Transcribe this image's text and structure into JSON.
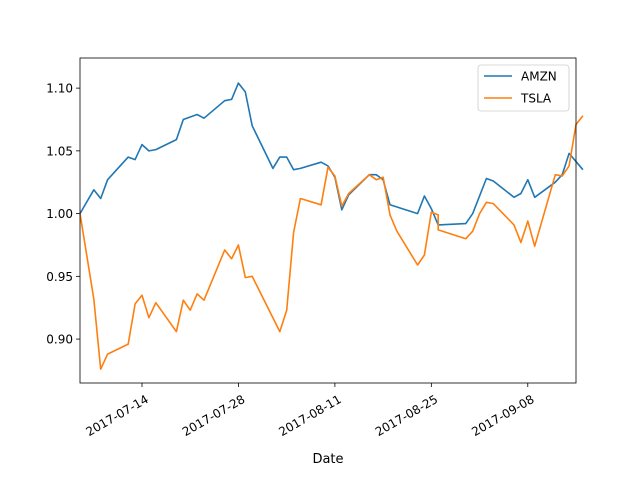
{
  "chart_data": {
    "type": "line",
    "title": "",
    "xlabel": "Date",
    "ylabel": "",
    "grid": false,
    "legend_position": "upper right",
    "xlim": [
      "2017-07-05",
      "2017-09-15"
    ],
    "ylim": [
      0.865,
      1.124
    ],
    "x_ticks": [
      "2017-07-14",
      "2017-07-28",
      "2017-08-11",
      "2017-08-25",
      "2017-09-08"
    ],
    "y_ticks": [
      "0.90",
      "0.95",
      "1.00",
      "1.05",
      "1.10"
    ],
    "series": [
      {
        "name": "AMZN",
        "color": "#1f77b4",
        "points": [
          [
            "2017-07-05",
            1.0
          ],
          [
            "2017-07-07",
            1.019
          ],
          [
            "2017-07-08",
            1.012
          ],
          [
            "2017-07-09",
            1.027
          ],
          [
            "2017-07-12",
            1.045
          ],
          [
            "2017-07-13",
            1.043
          ],
          [
            "2017-07-14",
            1.055
          ],
          [
            "2017-07-15",
            1.05
          ],
          [
            "2017-07-16",
            1.051
          ],
          [
            "2017-07-19",
            1.059
          ],
          [
            "2017-07-20",
            1.075
          ],
          [
            "2017-07-22",
            1.079
          ],
          [
            "2017-07-23",
            1.076
          ],
          [
            "2017-07-26",
            1.09
          ],
          [
            "2017-07-27",
            1.091
          ],
          [
            "2017-07-28",
            1.104
          ],
          [
            "2017-07-29",
            1.097
          ],
          [
            "2017-07-30",
            1.07
          ],
          [
            "2017-08-02",
            1.036
          ],
          [
            "2017-08-03",
            1.045
          ],
          [
            "2017-08-04",
            1.045
          ],
          [
            "2017-08-05",
            1.035
          ],
          [
            "2017-08-06",
            1.036
          ],
          [
            "2017-08-09",
            1.041
          ],
          [
            "2017-08-10",
            1.038
          ],
          [
            "2017-08-11",
            1.029
          ],
          [
            "2017-08-12",
            1.003
          ],
          [
            "2017-08-13",
            1.015
          ],
          [
            "2017-08-16",
            1.031
          ],
          [
            "2017-08-17",
            1.031
          ],
          [
            "2017-08-18",
            1.027
          ],
          [
            "2017-08-19",
            1.007
          ],
          [
            "2017-08-23",
            1.0
          ],
          [
            "2017-08-24",
            1.014
          ],
          [
            "2017-08-25",
            1.004
          ],
          [
            "2017-08-26",
            0.991
          ],
          [
            "2017-08-30",
            0.992
          ],
          [
            "2017-08-31",
            1.0
          ],
          [
            "2017-09-02",
            1.028
          ],
          [
            "2017-09-03",
            1.026
          ],
          [
            "2017-09-06",
            1.013
          ],
          [
            "2017-09-07",
            1.016
          ],
          [
            "2017-09-08",
            1.027
          ],
          [
            "2017-09-09",
            1.013
          ],
          [
            "2017-09-12",
            1.025
          ],
          [
            "2017-09-13",
            1.031
          ],
          [
            "2017-09-14",
            1.048
          ],
          [
            "2017-09-16",
            1.035
          ]
        ]
      },
      {
        "name": "TSLA",
        "color": "#ff7f0e",
        "points": [
          [
            "2017-07-05",
            1.0
          ],
          [
            "2017-07-07",
            0.932
          ],
          [
            "2017-07-08",
            0.876
          ],
          [
            "2017-07-09",
            0.888
          ],
          [
            "2017-07-12",
            0.896
          ],
          [
            "2017-07-13",
            0.928
          ],
          [
            "2017-07-14",
            0.935
          ],
          [
            "2017-07-15",
            0.917
          ],
          [
            "2017-07-16",
            0.929
          ],
          [
            "2017-07-19",
            0.906
          ],
          [
            "2017-07-20",
            0.931
          ],
          [
            "2017-07-21",
            0.923
          ],
          [
            "2017-07-22",
            0.936
          ],
          [
            "2017-07-23",
            0.931
          ],
          [
            "2017-07-26",
            0.971
          ],
          [
            "2017-07-27",
            0.964
          ],
          [
            "2017-07-28",
            0.975
          ],
          [
            "2017-07-29",
            0.949
          ],
          [
            "2017-07-30",
            0.95
          ],
          [
            "2017-08-03",
            0.906
          ],
          [
            "2017-08-04",
            0.923
          ],
          [
            "2017-08-05",
            0.985
          ],
          [
            "2017-08-06",
            1.012
          ],
          [
            "2017-08-09",
            1.007
          ],
          [
            "2017-08-10",
            1.037
          ],
          [
            "2017-08-11",
            1.03
          ],
          [
            "2017-08-12",
            1.006
          ],
          [
            "2017-08-13",
            1.016
          ],
          [
            "2017-08-16",
            1.031
          ],
          [
            "2017-08-17",
            1.027
          ],
          [
            "2017-08-18",
            1.029
          ],
          [
            "2017-08-19",
            0.999
          ],
          [
            "2017-08-20",
            0.986
          ],
          [
            "2017-08-23",
            0.959
          ],
          [
            "2017-08-24",
            0.967
          ],
          [
            "2017-08-25",
            1.001
          ],
          [
            "2017-08-26",
            0.999
          ],
          [
            "2017-08-26",
            0.987
          ],
          [
            "2017-08-30",
            0.98
          ],
          [
            "2017-08-31",
            0.986
          ],
          [
            "2017-09-01",
            1.0
          ],
          [
            "2017-09-02",
            1.009
          ],
          [
            "2017-09-03",
            1.008
          ],
          [
            "2017-09-06",
            0.991
          ],
          [
            "2017-09-07",
            0.977
          ],
          [
            "2017-09-08",
            0.994
          ],
          [
            "2017-09-09",
            0.974
          ],
          [
            "2017-09-12",
            1.031
          ],
          [
            "2017-09-13",
            1.03
          ],
          [
            "2017-09-14",
            1.038
          ],
          [
            "2017-09-15",
            1.071
          ],
          [
            "2017-09-16",
            1.078
          ]
        ]
      }
    ]
  }
}
